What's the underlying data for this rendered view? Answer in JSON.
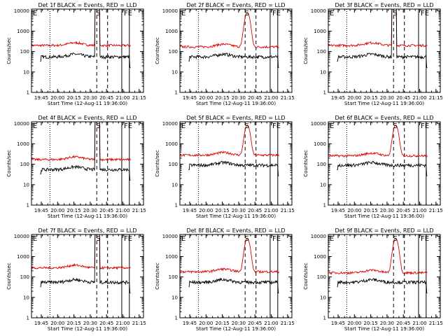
{
  "figure": {
    "chart_data": [
      {
        "type": "line",
        "title": "Det 1f BLACK = Events, RED = LLD",
        "red_level": 200,
        "black_level": 55,
        "peak": "sat",
        "xlabel": "Start Time (12-Aug-11 19:36:00)",
        "ylabel": "Counts/sec",
        "flags": [
          "E",
          "S",
          "FE"
        ]
      },
      {
        "type": "line",
        "title": "Det 2f BLACK = Events, RED = LLD",
        "red_level": 170,
        "black_level": 55,
        "peak": "gauss",
        "peak_value": 8000,
        "xlabel": "Start Time (12-Aug-11 19:36:00)",
        "ylabel": "Counts/sec",
        "flags": [
          "E",
          "S",
          "FE"
        ]
      },
      {
        "type": "line",
        "title": "Det 3f BLACK = Events, RED = LLD",
        "red_level": 200,
        "black_level": 55,
        "peak": "sat",
        "xlabel": "Start Time (12-Aug-11 19:36:00)",
        "ylabel": "Counts/sec",
        "flags": [
          "E",
          "S",
          "FE"
        ]
      },
      {
        "type": "line",
        "title": "Det 4f BLACK = Events, RED = LLD",
        "red_level": 170,
        "black_level": 55,
        "peak": "sat",
        "xlabel": "Start Time (12-Aug-11 19:36:00)",
        "ylabel": "Counts/sec",
        "flags": [
          "E",
          "S",
          "FE"
        ]
      },
      {
        "type": "line",
        "title": "Det 5f BLACK = Events, RED = LLD",
        "red_level": 280,
        "black_level": 90,
        "peak": "gauss",
        "peak_value": 8000,
        "xlabel": "Start Time (12-Aug-11 19:36:00)",
        "ylabel": "Counts/sec",
        "flags": [
          "E",
          "S",
          "FE"
        ]
      },
      {
        "type": "line",
        "title": "Det 6f BLACK = Events, RED = LLD",
        "red_level": 260,
        "black_level": 90,
        "peak": "gauss",
        "peak_value": 8000,
        "xlabel": "Start Time (12-Aug-11 19:36:00)",
        "ylabel": "Counts/sec",
        "flags": [
          "E",
          "S",
          "FE"
        ]
      },
      {
        "type": "line",
        "title": "Det 7f BLACK = Events, RED = LLD",
        "red_level": 280,
        "black_level": 55,
        "peak": "sat",
        "xlabel": "Start Time (12-Aug-11 19:36:00)",
        "ylabel": "Counts/sec",
        "flags": [
          "E",
          "S",
          "FE"
        ]
      },
      {
        "type": "line",
        "title": "Det 8f BLACK = Events, RED = LLD",
        "red_level": 180,
        "black_level": 55,
        "peak": "gauss",
        "peak_value": 7500,
        "xlabel": "Start Time (12-Aug-11 19:36:00)",
        "ylabel": "Counts/sec",
        "flags": [
          "E",
          "S",
          "FE"
        ]
      },
      {
        "type": "line",
        "title": "Det 9f BLACK = Events, RED = LLD",
        "red_level": 160,
        "black_level": 55,
        "peak": "gauss",
        "peak_value": 7500,
        "xlabel": "Start Time (12-Aug-11 19:36:00)",
        "ylabel": "Counts/sec",
        "flags": [
          "E",
          "S",
          "FE"
        ]
      }
    ],
    "shared": {
      "x_ticks": [
        "19:45",
        "20:00",
        "20:15",
        "20:30",
        "20:45",
        "21:00",
        "21:15"
      ],
      "x_tick_minutes": [
        9,
        24,
        39,
        54,
        69,
        84,
        99
      ],
      "xlim_minutes": [
        0,
        103
      ],
      "y_ticks": [
        "1",
        "10",
        "100",
        "1000",
        "10000"
      ],
      "y_tick_values": [
        1,
        10,
        100,
        1000,
        10000
      ],
      "ylim": [
        1,
        12000
      ],
      "y_scale": "log",
      "event_lines_minutes": {
        "dotted": [
          17
        ],
        "dashed": [
          60,
          70
        ],
        "solid": [
          83,
          90
        ]
      },
      "series_colors": {
        "events": "#000000",
        "lld": "#dd0000"
      }
    }
  }
}
